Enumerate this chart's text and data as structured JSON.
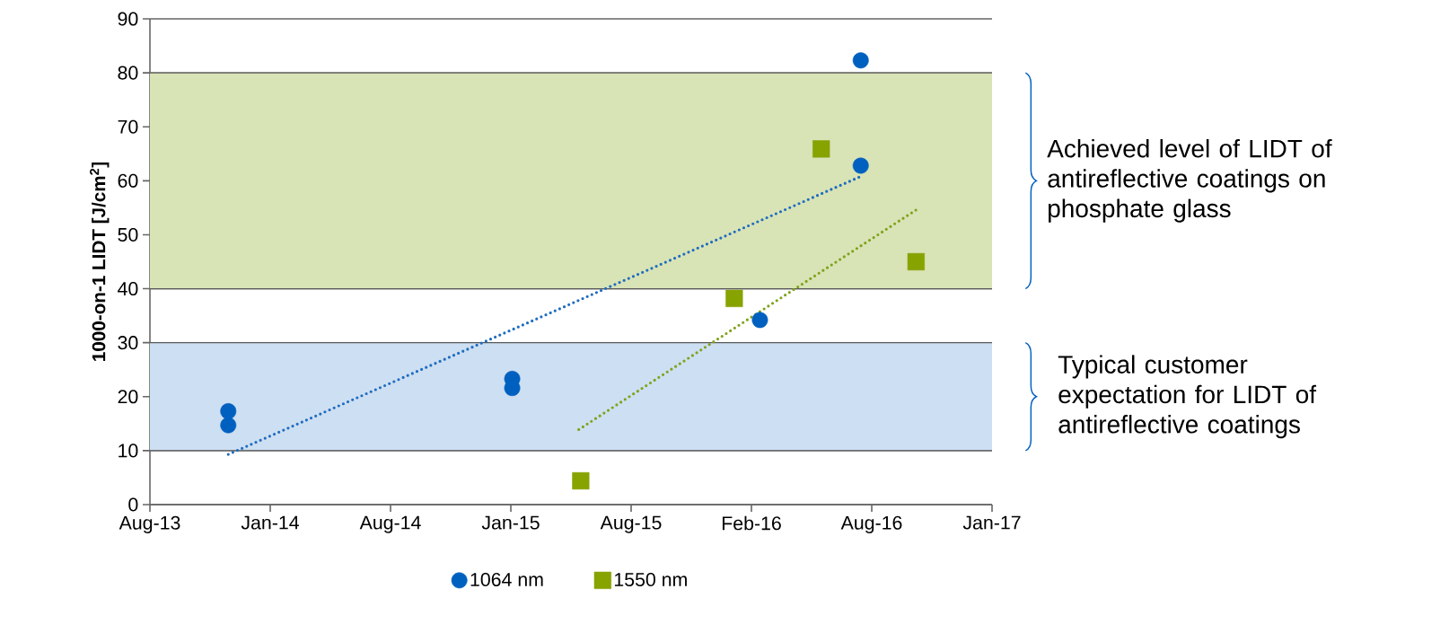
{
  "chart_data": {
    "type": "scatter",
    "ylabel": "1000-on-1 LIDT [J/cm$^{2}$]",
    "xlim": [
      "2013-08-02T02:24",
      "2017-01-31T07:12"
    ],
    "xticks": [
      {
        "value": "2013-08-02T02:24",
        "label": "Aug-13"
      },
      {
        "value": "2014-01-31T16:48",
        "label": "Jan-14"
      },
      {
        "value": "2014-08-02T07:12",
        "label": "Aug-14"
      },
      {
        "value": "2015-01-31T21:36",
        "label": "Jan-15"
      },
      {
        "value": "2015-08-02T12:00",
        "label": "Aug-15"
      },
      {
        "value": "2016-02-01T02:24",
        "label": "Feb-16"
      },
      {
        "value": "2016-08-01T16:48",
        "label": "Aug-16"
      },
      {
        "value": "2017-01-31T07:12",
        "label": "Jan-17"
      }
    ],
    "ylim": [
      0,
      90
    ],
    "yticks": [
      0,
      10,
      20,
      30,
      40,
      50,
      60,
      70,
      80,
      90
    ],
    "grid": "y",
    "legend": "bottom",
    "bands": [
      {
        "axis": "y",
        "from": 40,
        "to": 80,
        "label": "Achieved level of LIDT of antireflective coatings on phosphate glass",
        "color": "#d8e3b6"
      },
      {
        "axis": "y",
        "from": 10,
        "to": 30,
        "label": "Typical customer expectation for LIDT of antireflective coatings",
        "color": "#cddff2"
      }
    ],
    "series": [
      {
        "name": "1064 nm",
        "marker": "circle",
        "color": "#0060c0",
        "x": [
          "2013-11-29",
          "2013-11-29",
          "2015-02-03",
          "2015-02-03",
          "2016-02-14",
          "2016-07-16",
          "2016-07-16"
        ],
        "values": [
          17.3,
          14.7,
          23.3,
          21.6,
          34.2,
          82.3,
          62.8
        ]
      },
      {
        "name": "1550 nm",
        "marker": "square",
        "color": "#86a300",
        "x": [
          "2015-05-18",
          "2016-01-06",
          "2016-05-17",
          "2016-10-08"
        ],
        "values": [
          4.4,
          38.2,
          65.9,
          45.0
        ]
      },
      {
        "type": "line",
        "marker": "none",
        "line_style": "dotted",
        "color": "#1f6cc0",
        "x": [
          "2013-11-29",
          "2016-07-16"
        ],
        "values": [
          9.3,
          60.8
        ]
      },
      {
        "type": "line",
        "marker": "none",
        "line_style": "dotted",
        "color": "#7fa31a",
        "x": [
          "2015-05-15",
          "2016-10-08"
        ],
        "values": [
          13.9,
          54.6
        ]
      }
    ]
  }
}
